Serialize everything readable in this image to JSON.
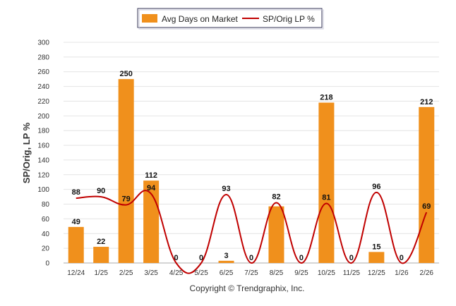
{
  "chart_data": {
    "type": "bar",
    "categories": [
      "12/24",
      "1/25",
      "2/25",
      "3/25",
      "4/25",
      "5/25",
      "6/25",
      "7/25",
      "8/25",
      "9/25",
      "10/25",
      "11/25",
      "12/25",
      "1/26",
      "2/26"
    ],
    "series": [
      {
        "name": "Avg Days on Market",
        "type": "bar",
        "color": "#f0901c",
        "values": [
          49,
          22,
          250,
          112,
          0,
          0,
          3,
          0,
          77,
          0,
          218,
          0,
          15,
          0,
          212
        ]
      },
      {
        "name": "SP/Orig LP %",
        "type": "line",
        "color": "#c00000",
        "values": [
          88,
          90,
          79,
          94,
          0,
          0,
          93,
          0,
          82,
          0,
          81,
          0,
          96,
          0,
          69
        ]
      }
    ],
    "bar_labels": [
      "49",
      "22",
      "250",
      "112",
      "0",
      "0",
      "3",
      "0",
      "",
      "0",
      "218",
      "0",
      "15",
      "0",
      "212"
    ],
    "line_labels": [
      "88",
      "90",
      "79",
      "94",
      "",
      "",
      "93",
      "",
      "82",
      "",
      "81",
      "",
      "96",
      "",
      "69"
    ],
    "ylabel": "SP/Orig, LP %",
    "xlabel": "",
    "ylim": [
      0,
      300
    ],
    "yticks": [
      "0",
      "20",
      "40",
      "60",
      "80",
      "100",
      "120",
      "140",
      "160",
      "180",
      "200",
      "220",
      "240",
      "260",
      "280",
      "300"
    ],
    "legend_position": "top-center",
    "grid": true
  },
  "footer": {
    "copyright": "Copyright © Trendgraphix, Inc."
  }
}
